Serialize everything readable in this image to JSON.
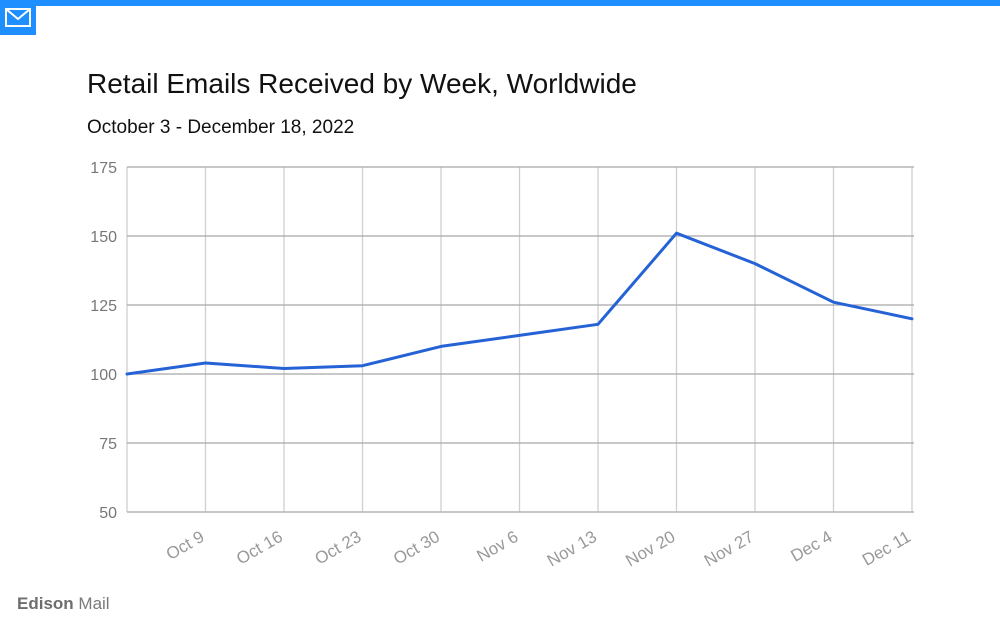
{
  "brand": {
    "icon": "mail-icon",
    "accent_color": "#1f8fff",
    "name_part1": "Edison",
    "name_part2": "Mail"
  },
  "chart_data": {
    "type": "line",
    "title": "Retail Emails Received by Week, Worldwide",
    "subtitle": "October 3 - December 18, 2022",
    "xlabel": "",
    "ylabel": "",
    "ylim": [
      50,
      175
    ],
    "yticks": [
      50,
      75,
      100,
      125,
      150,
      175
    ],
    "x_tick_labels": [
      "Oct 9",
      "Oct 16",
      "Oct 23",
      "Oct 30",
      "Nov 6",
      "Nov 13",
      "Nov 20",
      "Nov 27",
      "Dec 4",
      "Dec 11"
    ],
    "grid": true,
    "line_color": "#2462d6",
    "series": [
      {
        "x": [
          "Oct 3",
          "Oct 10",
          "Oct 17",
          "Oct 24",
          "Oct 31",
          "Nov 7",
          "Nov 14",
          "Nov 21",
          "Nov 28",
          "Dec 5",
          "Dec 12"
        ],
        "values": [
          100,
          104,
          102,
          103,
          110,
          114,
          118,
          151,
          140,
          126,
          120
        ]
      }
    ]
  }
}
